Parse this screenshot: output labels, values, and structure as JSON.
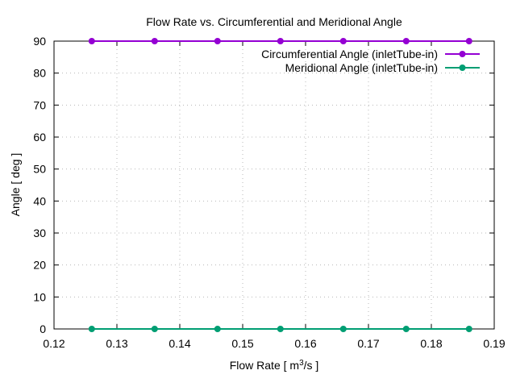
{
  "chart_data": {
    "type": "line",
    "title": "Flow Rate vs. Circumferential and Meridional Angle",
    "xlabel": {
      "prefix": "Flow Rate [ m",
      "superscript": "3",
      "suffix": "/s ]"
    },
    "ylabel": "Angle [ deg ]",
    "xlim": [
      0.12,
      0.19
    ],
    "ylim": [
      0,
      90
    ],
    "xticks": [
      0.12,
      0.13,
      0.14,
      0.15,
      0.16,
      0.17,
      0.18,
      0.19
    ],
    "xtick_labels": [
      "0.12",
      "0.13",
      "0.14",
      "0.15",
      "0.16",
      "0.17",
      "0.18",
      "0.19"
    ],
    "yticks": [
      0,
      10,
      20,
      30,
      40,
      50,
      60,
      70,
      80,
      90
    ],
    "ytick_labels": [
      "0",
      "10",
      "20",
      "30",
      "40",
      "50",
      "60",
      "70",
      "80",
      "90"
    ],
    "grid": true,
    "legend_position": "top-right",
    "x": [
      0.126,
      0.136,
      0.146,
      0.156,
      0.166,
      0.176,
      0.186
    ],
    "series": [
      {
        "name": "Circumferential Angle (inletTube-in)",
        "color": "#9400d3",
        "values": [
          90,
          90,
          90,
          90,
          90,
          90,
          90
        ]
      },
      {
        "name": "Meridional Angle (inletTube-in)",
        "color": "#009e73",
        "values": [
          0,
          0,
          0,
          0,
          0,
          0,
          0
        ]
      }
    ]
  }
}
